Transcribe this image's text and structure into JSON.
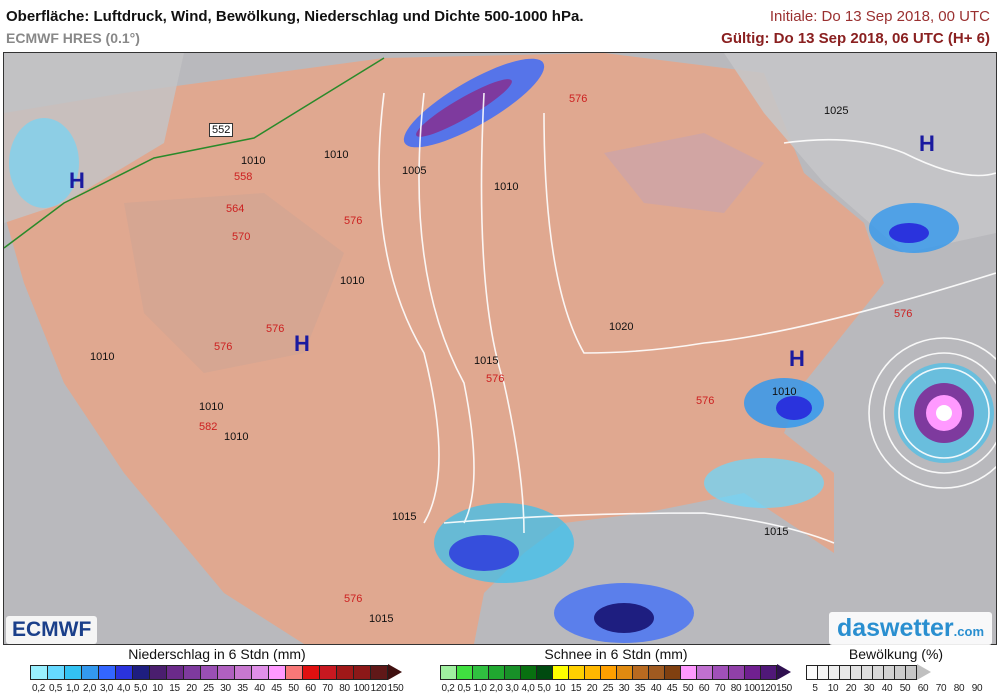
{
  "header": {
    "title": "Oberfläche: Luftdruck, Wind, Bewölkung, Niederschlag und Dichte 500-1000 hPa.",
    "model": "ECMWF HRES (0.1°)",
    "initial": "Initiale: Do 13 Sep 2018, 00 UTC",
    "valid": "Gültig: Do 13 Sep 2018, 06 UTC (H+ 6)"
  },
  "map": {
    "pressure_centers": [
      "H",
      "H",
      "H",
      "H"
    ],
    "isobar_labels": [
      "1010",
      "1010",
      "1005",
      "1010",
      "1025",
      "1010",
      "1010",
      "1015",
      "1020",
      "1010",
      "1010",
      "1015",
      "1015",
      "1015",
      "1010"
    ],
    "thickness_labels": [
      "558",
      "564",
      "570",
      "576",
      "576",
      "576",
      "576",
      "576",
      "582",
      "576",
      "576",
      "576"
    ],
    "road_label": "552",
    "colors": {
      "land": "#e0a890",
      "ocean": "#b9b9bd",
      "cloud": "#c9c9cc",
      "isobar": "#ffffff",
      "thickness": "#cc2020",
      "border": "#8a5a40",
      "high": "#1a1aa0"
    }
  },
  "logos": {
    "ecmwf": "ECMWF",
    "daswetter": "daswetter",
    "daswetter_suffix": ".com"
  },
  "legends": {
    "rain": {
      "title": "Niederschlag in 6 Stdn (mm)",
      "ticks": [
        "0,2",
        "0,5",
        "1,0",
        "2,0",
        "3,0",
        "4,0",
        "5,0",
        "10",
        "15",
        "20",
        "25",
        "30",
        "35",
        "40",
        "45",
        "50",
        "60",
        "70",
        "80",
        "100",
        "120",
        "150"
      ],
      "colors": [
        "#99f0ff",
        "#66d9ff",
        "#33c2f2",
        "#3399ee",
        "#3366ff",
        "#2a33dd",
        "#1e1e80",
        "#4a1e6e",
        "#6b2a8a",
        "#7e3a9e",
        "#9a4fb4",
        "#b060c0",
        "#c878d0",
        "#e090e8",
        "#ff99ff",
        "#f87878",
        "#e01010",
        "#c81820",
        "#a01818",
        "#8c1818",
        "#601818"
      ],
      "arrow_color": "#401010"
    },
    "snow": {
      "title": "Schnee in 6 Stdn (mm)",
      "ticks": [
        "0,2",
        "0,5",
        "1,0",
        "2,0",
        "3,0",
        "4,0",
        "5,0",
        "10",
        "15",
        "20",
        "25",
        "30",
        "35",
        "40",
        "45",
        "50",
        "60",
        "70",
        "80",
        "100",
        "120",
        "150"
      ],
      "colors": [
        "#a0f0a0",
        "#40e040",
        "#30c040",
        "#20a830",
        "#189028",
        "#087010",
        "#004a10",
        "#ffff00",
        "#ffd000",
        "#ffb800",
        "#ffa000",
        "#e08a10",
        "#b86a20",
        "#a05a20",
        "#804010",
        "#ff99ff",
        "#c070d0",
        "#a050b8",
        "#9040a8",
        "#702090",
        "#501878"
      ],
      "arrow_color": "#301050"
    },
    "cloud": {
      "title": "Bewölkung (%)",
      "ticks": [
        "5",
        "10",
        "20",
        "30",
        "40",
        "50",
        "60",
        "70",
        "80",
        "90"
      ],
      "colors": [
        "#fbfbfb",
        "#f4f4f4",
        "#eeeeee",
        "#e8e8e8",
        "#e2e2e2",
        "#dddddd",
        "#d8d8d8",
        "#d2d2d2",
        "#cccccc",
        "#c6c6c6"
      ],
      "arrow_color": "#c0c0c0"
    }
  }
}
